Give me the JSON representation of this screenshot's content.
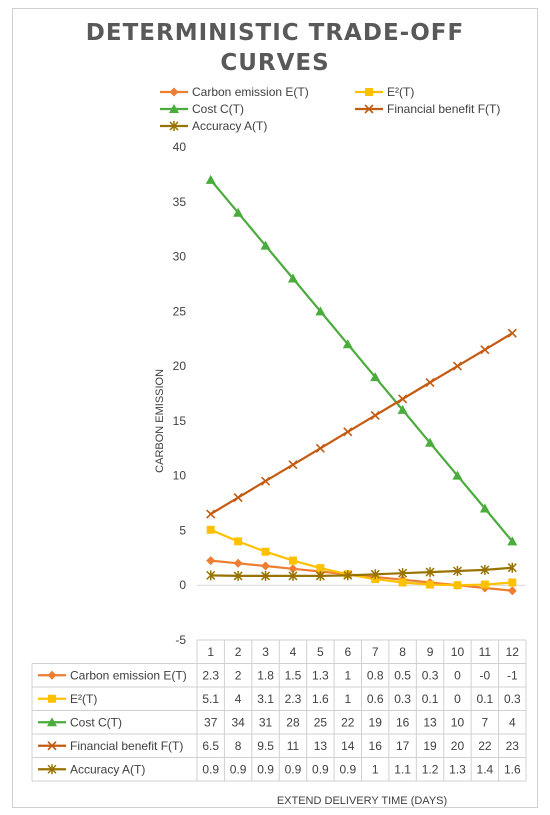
{
  "chart_data": {
    "type": "line",
    "title_lines": [
      "DETERMINISTIC TRADE-OFF",
      "CURVES"
    ],
    "xlabel": "EXTEND DELIVERY TIME (DAYS)",
    "ylabel": "CARBON EMISSION",
    "ylim": [
      -5,
      40
    ],
    "yticks": [
      -5,
      0,
      5,
      10,
      15,
      20,
      25,
      30,
      35,
      40
    ],
    "grid": false,
    "legend_position": "top",
    "categories": [
      "1",
      "2",
      "3",
      "4",
      "5",
      "6",
      "7",
      "8",
      "9",
      "10",
      "11",
      "12"
    ],
    "series": [
      {
        "name": "Carbon emission E(T)",
        "color": "#ED7D31",
        "marker": "diamond",
        "values": [
          2.25,
          2.0,
          1.75,
          1.5,
          1.25,
          1.0,
          0.75,
          0.5,
          0.25,
          0.0,
          -0.25,
          -0.5
        ],
        "labels": [
          "2.3",
          "2",
          "1.8",
          "1.5",
          "1.3",
          "1",
          "0.8",
          "0.5",
          "0.3",
          "0",
          "-0",
          "-1"
        ]
      },
      {
        "name": "E²(T)",
        "color": "#FFC000",
        "marker": "square",
        "values": [
          5.06,
          4.0,
          3.06,
          2.25,
          1.56,
          1.0,
          0.56,
          0.25,
          0.06,
          0.0,
          0.06,
          0.25
        ],
        "labels": [
          "5.1",
          "4",
          "3.1",
          "2.3",
          "1.6",
          "1",
          "0.6",
          "0.3",
          "0.1",
          "0",
          "0.1",
          "0.3"
        ]
      },
      {
        "name": "Cost C(T)",
        "color": "#4AAC3C",
        "marker": "triangle",
        "values": [
          37,
          34,
          31,
          28,
          25,
          22,
          19,
          16,
          13,
          10,
          7,
          4
        ],
        "labels": [
          "37",
          "34",
          "31",
          "28",
          "25",
          "22",
          "19",
          "16",
          "13",
          "10",
          "7",
          "4"
        ]
      },
      {
        "name": "Financial benefit F(T)",
        "color": "#C55A11",
        "marker": "x",
        "values": [
          6.5,
          8,
          9.5,
          11,
          12.5,
          14,
          15.5,
          17,
          18.5,
          20,
          21.5,
          23
        ],
        "labels": [
          "6.5",
          "8",
          "9.5",
          "11",
          "13",
          "14",
          "16",
          "17",
          "19",
          "20",
          "22",
          "23"
        ]
      },
      {
        "name": "Accuracy A(T)",
        "color": "#997300",
        "marker": "star",
        "values": [
          0.9,
          0.85,
          0.85,
          0.85,
          0.85,
          0.9,
          1.0,
          1.1,
          1.2,
          1.3,
          1.4,
          1.6
        ],
        "labels": [
          "0.9",
          "0.9",
          "0.9",
          "0.9",
          "0.9",
          "0.9",
          "1",
          "1.1",
          "1.2",
          "1.3",
          "1.4",
          "1.6"
        ]
      }
    ]
  }
}
